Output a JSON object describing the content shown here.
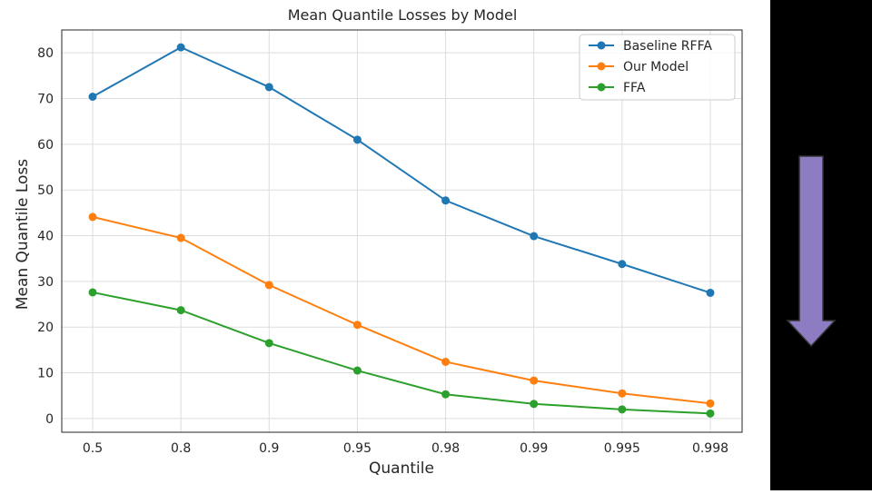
{
  "colors": {
    "background": "#ffffff",
    "grid": "#dddddd",
    "axes_frame": "#262626",
    "right_panel": "#000000",
    "arrow_fill": "#8e7cc3",
    "arrow_stroke": "#333333"
  },
  "decoration": {
    "arrow_icon": "down-arrow",
    "arrow_direction": "down"
  },
  "chart_data": {
    "type": "line",
    "title": "Mean Quantile Losses by Model",
    "xlabel": "Quantile",
    "ylabel": "Mean Quantile Loss",
    "categories": [
      "0.5",
      "0.8",
      "0.9",
      "0.95",
      "0.98",
      "0.99",
      "0.995",
      "0.998"
    ],
    "ylim": [
      -3,
      85
    ],
    "yticks": [
      0,
      10,
      20,
      30,
      40,
      50,
      60,
      70,
      80
    ],
    "grid": true,
    "legend_position": "top-right",
    "marker": "circle",
    "series": [
      {
        "name": "Baseline RFFA",
        "color": "#1f77b4",
        "values": [
          70.4,
          81.2,
          72.5,
          61.0,
          47.7,
          39.9,
          33.8,
          27.5
        ]
      },
      {
        "name": "Our Model",
        "color": "#ff7f0e",
        "values": [
          44.1,
          39.5,
          29.2,
          20.5,
          12.4,
          8.3,
          5.5,
          3.3
        ]
      },
      {
        "name": "FFA",
        "color": "#2ca02c",
        "values": [
          27.6,
          23.7,
          16.5,
          10.5,
          5.3,
          3.2,
          2.0,
          1.1
        ]
      }
    ]
  }
}
